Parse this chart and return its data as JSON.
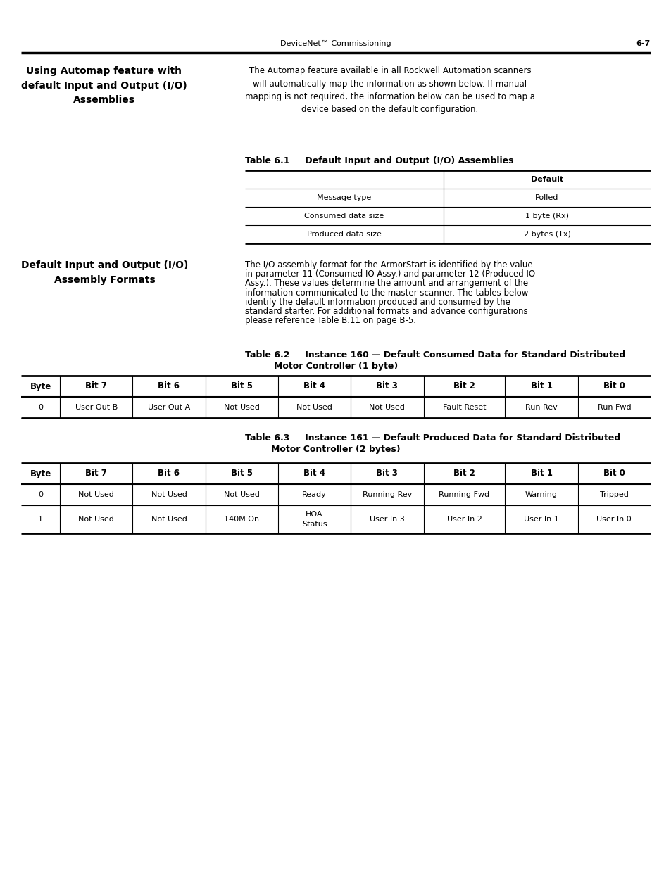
{
  "page_header_left": "DeviceNet™ Commissioning",
  "page_header_right": "6-7",
  "section1_title": "Using Automap feature with\ndefault Input and Output (I/O)\nAssemblies",
  "section1_body": "The Automap feature available in all Rockwell Automation scanners\nwill automatically map the information as shown below. If manual\nmapping is not required, the information below can be used to map a\ndevice based on the default configuration.",
  "table1_title": "Table 6.1     Default Input and Output (I/O) Assemblies",
  "table1_data": [
    [
      "",
      "Default"
    ],
    [
      "Message type",
      "Polled"
    ],
    [
      "Consumed data size",
      "1 byte (Rx)"
    ],
    [
      "Produced data size",
      "2 bytes (Tx)"
    ]
  ],
  "section2_title": "Default Input and Output (I/O)\nAssembly Formats",
  "section2_body_lines": [
    "The I/O assembly format for the ArmorStart is identified by the value",
    "in parameter 11 (Consumed IO Assy.) and parameter 12 (Produced IO",
    "Assy.). These values determine the amount and arrangement of the",
    "information communicated to the master scanner. The tables below",
    "identify the ⁠default⁠ information produced and consumed by the",
    "standard starter. For additional formats and advance configurations",
    "please reference Table B.11 on page B-5."
  ],
  "underline_line_index": 4,
  "underline_word": "default",
  "table2_title_line1": "Table 6.2     Instance 160 — Default Consumed Data for Standard Distributed",
  "table2_title_line2": "Motor Controller (1 byte)",
  "table2_headers": [
    "Byte",
    "Bit 7",
    "Bit 6",
    "Bit 5",
    "Bit 4",
    "Bit 3",
    "Bit 2",
    "Bit 1",
    "Bit 0"
  ],
  "table2_data": [
    [
      "0",
      "User Out B",
      "User Out A",
      "Not Used",
      "Not Used",
      "Not Used",
      "Fault Reset",
      "Run Rev",
      "Run Fwd"
    ]
  ],
  "table3_title_line1": "Table 6.3     Instance 161 — Default Produced Data for Standard Distributed",
  "table3_title_line2": "Motor Controller (2 bytes)",
  "table3_headers": [
    "Byte",
    "Bit 7",
    "Bit 6",
    "Bit 5",
    "Bit 4",
    "Bit 3",
    "Bit 2",
    "Bit 1",
    "Bit 0"
  ],
  "table3_data": [
    [
      "0",
      "Not Used",
      "Not Used",
      "Not Used",
      "Ready",
      "Running Rev",
      "Running Fwd",
      "Warning",
      "Tripped"
    ],
    [
      "1",
      "Not Used",
      "Not Used",
      "140M On",
      "HOA\nStatus",
      "User In 3",
      "User In 2",
      "User In 1",
      "User In 0"
    ]
  ],
  "bg_color": "#ffffff",
  "text_color": "#000000"
}
